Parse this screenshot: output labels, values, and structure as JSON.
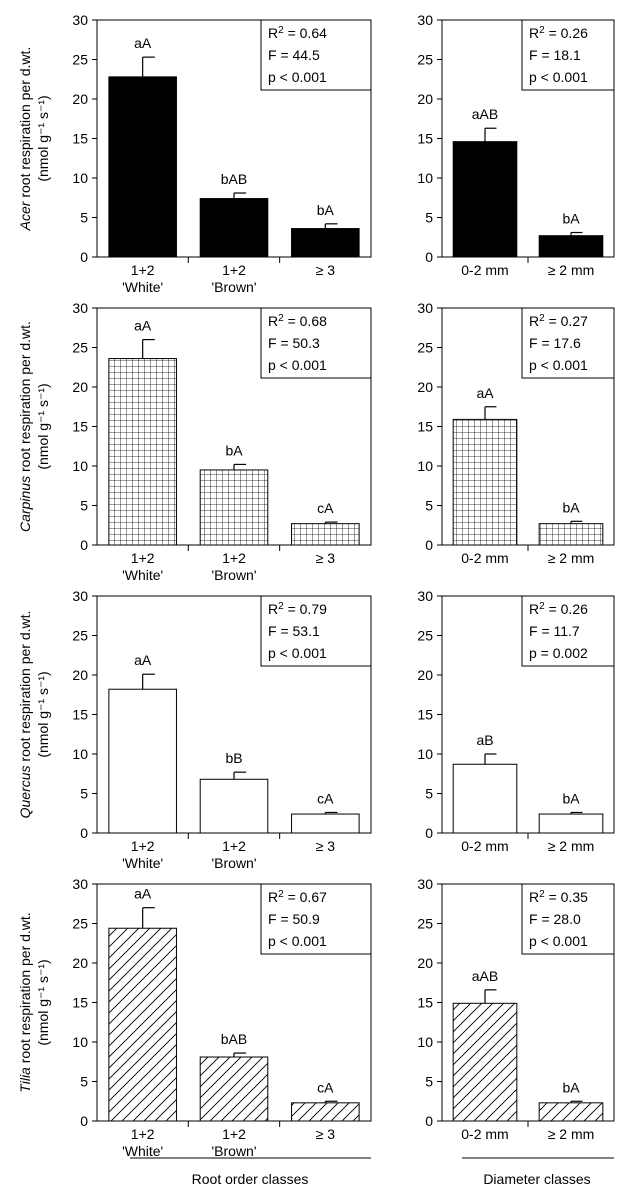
{
  "panel_defaults": {
    "ylim": [
      0,
      30
    ],
    "yticks": [
      0,
      5,
      10,
      15,
      20,
      25,
      30
    ]
  },
  "bottom_labels": {
    "left": "Root order classes",
    "right": "Diameter classes"
  },
  "ylabel_suffix": " root respiration per d.wt.",
  "ylabel_units": "(nmol g⁻¹ s⁻¹)",
  "chart_data": [
    {
      "type": "bar",
      "species": "Acer",
      "group": "Root order classes",
      "ylabel": "Acer root respiration per d.wt. (nmol g-1 s-1)",
      "ylim": [
        0,
        30
      ],
      "categories": [
        [
          "1+2",
          "'White'"
        ],
        [
          "1+2",
          "'Brown'"
        ],
        [
          "≥ 3"
        ]
      ],
      "values": [
        22.8,
        7.4,
        3.6
      ],
      "errors": [
        2.5,
        0.7,
        0.6
      ],
      "letters": [
        "aA",
        "bAB",
        "bA"
      ],
      "fill": "solid",
      "stats": [
        "R² = 0.64",
        "F = 44.5",
        "p < 0.001"
      ]
    },
    {
      "type": "bar",
      "species": "Acer",
      "group": "Diameter classes",
      "ylim": [
        0,
        30
      ],
      "categories": [
        [
          "0-2 mm"
        ],
        [
          "≥ 2 mm"
        ]
      ],
      "values": [
        14.6,
        2.7
      ],
      "errors": [
        1.7,
        0.4
      ],
      "letters": [
        "aAB",
        "bA"
      ],
      "fill": "solid",
      "stats": [
        "R² = 0.26",
        "F = 18.1",
        "p < 0.001"
      ]
    },
    {
      "type": "bar",
      "species": "Carpinus",
      "group": "Root order classes",
      "ylabel": "Carpinus root respiration per d.wt. (nmol g-1 s-1)",
      "ylim": [
        0,
        30
      ],
      "categories": [
        [
          "1+2",
          "'White'"
        ],
        [
          "1+2",
          "'Brown'"
        ],
        [
          "≥ 3"
        ]
      ],
      "values": [
        23.6,
        9.5,
        2.7
      ],
      "errors": [
        2.4,
        0.7,
        0.2
      ],
      "letters": [
        "aA",
        "bA",
        "cA"
      ],
      "fill": "grid",
      "stats": [
        "R² = 0.68",
        "F = 50.3",
        "p < 0.001"
      ]
    },
    {
      "type": "bar",
      "species": "Carpinus",
      "group": "Diameter classes",
      "ylim": [
        0,
        30
      ],
      "categories": [
        [
          "0-2 mm"
        ],
        [
          "≥ 2 mm"
        ]
      ],
      "values": [
        15.9,
        2.7
      ],
      "errors": [
        1.6,
        0.3
      ],
      "letters": [
        "aA",
        "bA"
      ],
      "fill": "grid",
      "stats": [
        "R² = 0.27",
        "F = 17.6",
        "p < 0.001"
      ]
    },
    {
      "type": "bar",
      "species": "Quercus",
      "group": "Root order classes",
      "ylabel": "Quercus root respiration per d.wt. (nmol g-1 s-1)",
      "ylim": [
        0,
        30
      ],
      "categories": [
        [
          "1+2",
          "'White'"
        ],
        [
          "1+2",
          "'Brown'"
        ],
        [
          "≥ 3"
        ]
      ],
      "values": [
        18.2,
        6.8,
        2.4
      ],
      "errors": [
        1.9,
        0.9,
        0.2
      ],
      "letters": [
        "aA",
        "bB",
        "cA"
      ],
      "fill": "none",
      "stats": [
        "R² = 0.79",
        "F = 53.1",
        "p < 0.001"
      ]
    },
    {
      "type": "bar",
      "species": "Quercus",
      "group": "Diameter classes",
      "ylim": [
        0,
        30
      ],
      "categories": [
        [
          "0-2 mm"
        ],
        [
          "≥ 2 mm"
        ]
      ],
      "values": [
        8.7,
        2.4
      ],
      "errors": [
        1.3,
        0.2
      ],
      "letters": [
        "aB",
        "bA"
      ],
      "fill": "none",
      "stats": [
        "R² = 0.26",
        "F = 11.7",
        "p = 0.002"
      ]
    },
    {
      "type": "bar",
      "species": "Tilia",
      "group": "Root order classes",
      "ylabel": "Tilia root respiration per d.wt. (nmol g-1 s-1)",
      "ylim": [
        0,
        30
      ],
      "categories": [
        [
          "1+2",
          "'White'"
        ],
        [
          "1+2",
          "'Brown'"
        ],
        [
          "≥ 3"
        ]
      ],
      "values": [
        24.4,
        8.1,
        2.3
      ],
      "errors": [
        2.6,
        0.5,
        0.2
      ],
      "letters": [
        "aA",
        "bAB",
        "cA"
      ],
      "fill": "hatch",
      "stats": [
        "R² = 0.67",
        "F = 50.9",
        "p < 0.001"
      ]
    },
    {
      "type": "bar",
      "species": "Tilia",
      "group": "Diameter classes",
      "ylim": [
        0,
        30
      ],
      "categories": [
        [
          "0-2 mm"
        ],
        [
          "≥ 2 mm"
        ]
      ],
      "values": [
        14.9,
        2.3
      ],
      "errors": [
        1.7,
        0.2
      ],
      "letters": [
        "aAB",
        "bA"
      ],
      "fill": "hatch",
      "stats": [
        "R² = 0.35",
        "F = 28.0",
        "p < 0.001"
      ]
    }
  ]
}
